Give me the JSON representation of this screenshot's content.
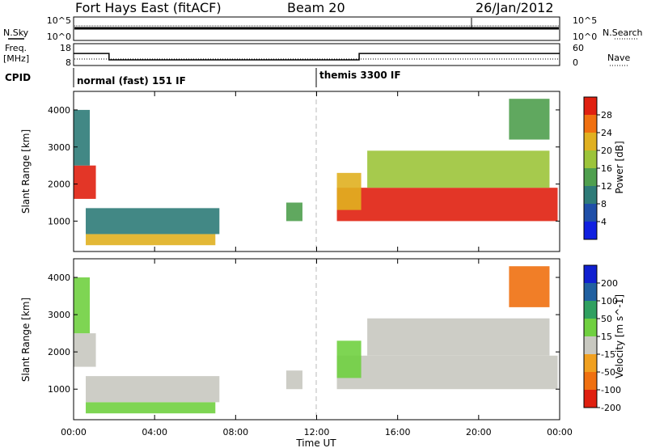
{
  "header": {
    "station": "Fort Hays East (fitACF)",
    "beam": "Beam 20",
    "date": "26/Jan/2012"
  },
  "top_panel": {
    "left_label": "N.Sky",
    "right_label": "N.Search",
    "left_ticks": [
      "10^5",
      "10^0"
    ],
    "right_ticks": [
      "10^5",
      "10^0"
    ]
  },
  "freq_panel": {
    "left_label_1": "Freq.",
    "left_label_2": "[MHz]",
    "right_label": "Nave",
    "left_ticks": [
      "18",
      "8"
    ],
    "right_ticks": [
      "60",
      "0"
    ],
    "segments": [
      {
        "start_hr": 0.0,
        "end_hr": 1.75,
        "freq_mhz": 13.5
      },
      {
        "start_hr": 1.75,
        "end_hr": 14.1,
        "freq_mhz": 10.6
      },
      {
        "start_hr": 14.1,
        "end_hr": 24.0,
        "freq_mhz": 13.5
      }
    ]
  },
  "cpid": {
    "label": "CPID",
    "modes": [
      {
        "text": "normal (fast) 151 IF",
        "start_hr": 0.0
      },
      {
        "text": "themis 3300 IF",
        "start_hr": 12.0
      }
    ]
  },
  "axes": {
    "ylabel": "Slant Range [km]",
    "y_ticks": [
      "1000",
      "2000",
      "3000",
      "4000"
    ],
    "x_ticks": [
      "00:00",
      "04:00",
      "08:00",
      "12:00",
      "16:00",
      "20:00",
      "00:00"
    ],
    "xlabel": "Time UT"
  },
  "power_scale": {
    "title": "Power [dB]",
    "ticks": [
      "4",
      "8",
      "12",
      "16",
      "20",
      "24",
      "28"
    ],
    "colors": [
      "#1020e0",
      "#1f4fa8",
      "#2e7b78",
      "#4f9f4e",
      "#9cc43a",
      "#e0b020",
      "#f07010",
      "#e02010"
    ]
  },
  "velocity_scale": {
    "title": "Velocity [m s^-1]",
    "ticks": [
      "200",
      "100",
      "50",
      "15",
      "-15",
      "-50",
      "-100",
      "-200"
    ],
    "colors": [
      "#1020d0",
      "#2060a0",
      "#30a060",
      "#70d040",
      "#c8c8c0",
      "#f0a020",
      "#f07010",
      "#e02010"
    ]
  },
  "chart_data": {
    "type": "heatmap",
    "x_range_hours": [
      0,
      24
    ],
    "y_range_km": [
      180,
      4500
    ],
    "panels": [
      "power",
      "velocity"
    ],
    "echo_regions": [
      {
        "t0": 0.0,
        "t1": 1.1,
        "r0": 1600,
        "r1": 2500,
        "power_db": 28,
        "velocity": -15
      },
      {
        "t0": 0.0,
        "t1": 0.8,
        "r0": 2500,
        "r1": 4000,
        "power_db": 10,
        "velocity": 20
      },
      {
        "t0": 0.6,
        "t1": 7.0,
        "r0": 350,
        "r1": 650,
        "power_db": 20,
        "velocity": 30
      },
      {
        "t0": 0.6,
        "t1": 7.2,
        "r0": 650,
        "r1": 1350,
        "power_db": 10,
        "velocity": -15
      },
      {
        "t0": 10.5,
        "t1": 11.3,
        "r0": 1000,
        "r1": 1500,
        "power_db": 12,
        "velocity": -15
      },
      {
        "t0": 13.0,
        "t1": 23.9,
        "r0": 1000,
        "r1": 1900,
        "power_db": 28,
        "velocity": -15
      },
      {
        "t0": 13.0,
        "t1": 14.2,
        "r0": 1300,
        "r1": 2300,
        "power_db": 20,
        "velocity": 30
      },
      {
        "t0": 14.5,
        "t1": 23.5,
        "r0": 1900,
        "r1": 2900,
        "power_db": 18,
        "velocity": -15
      },
      {
        "t0": 21.5,
        "t1": 23.5,
        "r0": 3200,
        "r1": 4300,
        "power_db": 14,
        "velocity": -60
      }
    ]
  }
}
